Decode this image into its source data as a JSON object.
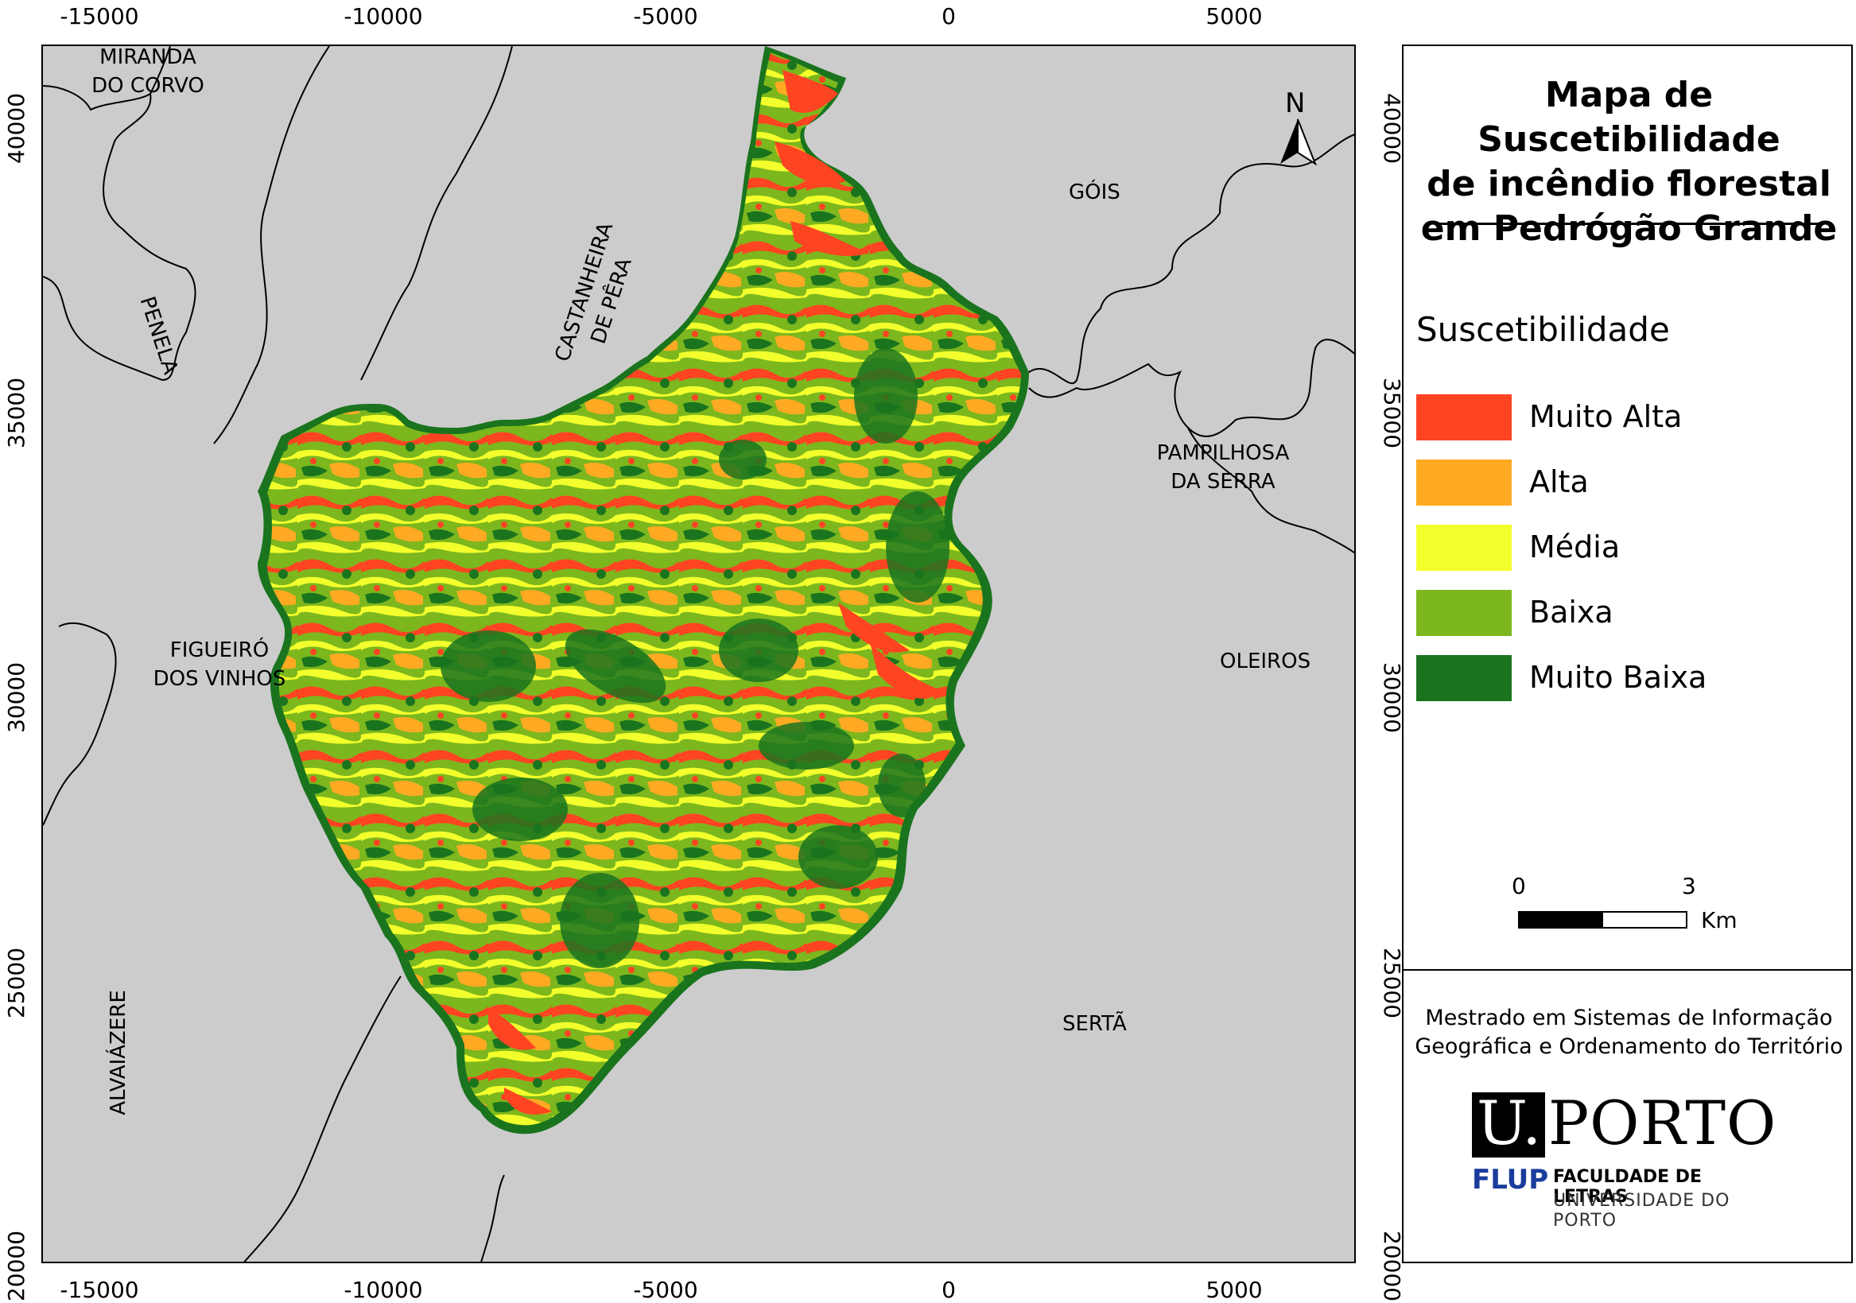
{
  "axes": {
    "x_ticks": [
      "-15000",
      "-10000",
      "-5000",
      "0",
      "5000"
    ],
    "y_ticks": [
      "20000",
      "25000",
      "30000",
      "35000",
      "40000"
    ]
  },
  "map": {
    "north_label": "N",
    "places": {
      "miranda": "MIRANDA",
      "miranda2": "DO CORVO",
      "penela": "PENELA",
      "castanheira": "CASTANHEIRA",
      "castanheira2": "DE PÊRA",
      "gois": "GÓIS",
      "pampilhosa": "PAMPILHOSA",
      "pampilhosa2": "DA SERRA",
      "figueiro": "FIGUEIRÓ",
      "figueiro2": "DOS VINHOS",
      "oleiros": "OLEIROS",
      "serta": "SERTÃ",
      "alvaiazere": "ALVAIÁZERE"
    },
    "background_color": "#cccccc"
  },
  "title": {
    "line1": "Mapa de Suscetibilidade",
    "line2": "de incêndio florestal",
    "line3": "em Pedrógão Grande"
  },
  "legend": {
    "heading": "Suscetibilidade",
    "items": [
      {
        "label": "Muito Alta",
        "color": "#ff4422"
      },
      {
        "label": "Alta",
        "color": "#ffaa22"
      },
      {
        "label": "Média",
        "color": "#f2ff2c"
      },
      {
        "label": "Baixa",
        "color": "#7cb71d"
      },
      {
        "label": "Muito Baixa",
        "color": "#1a741e"
      }
    ]
  },
  "scale": {
    "start": "0",
    "end": "3",
    "unit": "Km"
  },
  "credits": {
    "line1": "Mestrado em Sistemas de Informação",
    "line2": "Geográfica e Ordenamento do Território",
    "logo_u": "U.",
    "logo_porto": "PORTO",
    "logo_flup": "FLUP",
    "logo_fac1": "FACULDADE DE LETRAS",
    "logo_fac2": "UNIVERSIDADE DO PORTO"
  }
}
